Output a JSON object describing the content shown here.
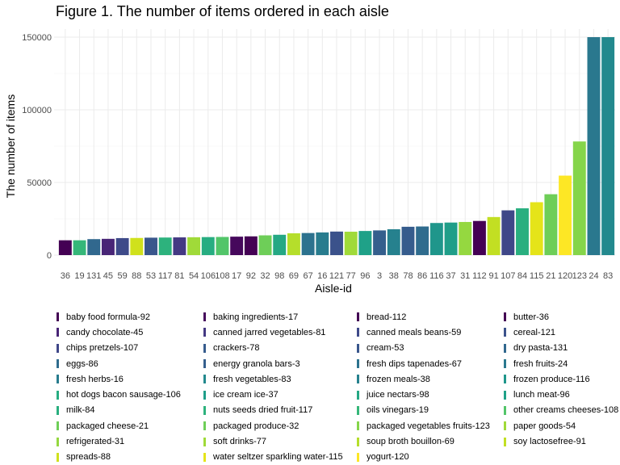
{
  "chart_data": {
    "type": "bar",
    "title": "Figure 1. The number of items ordered in each aisle",
    "xlabel": "Aisle-id",
    "ylabel": "The number of items",
    "ylim": [
      0,
      150000
    ],
    "yticks": [
      0,
      50000,
      100000,
      150000
    ],
    "grid": true,
    "legend_position": "bottom",
    "bars": [
      {
        "aisle": "36",
        "value": 10200,
        "color": "#440154"
      },
      {
        "aisle": "19",
        "value": 10200,
        "color": "#35b779"
      },
      {
        "aisle": "131",
        "value": 11000,
        "color": "#31688e"
      },
      {
        "aisle": "45",
        "value": 11200,
        "color": "#482576"
      },
      {
        "aisle": "59",
        "value": 11700,
        "color": "#3e4a89"
      },
      {
        "aisle": "88",
        "value": 11800,
        "color": "#d0e11c"
      },
      {
        "aisle": "53",
        "value": 12000,
        "color": "#39568c"
      },
      {
        "aisle": "117",
        "value": 12100,
        "color": "#2db27d"
      },
      {
        "aisle": "81",
        "value": 12200,
        "color": "#443983"
      },
      {
        "aisle": "54",
        "value": 12300,
        "color": "#a0da39"
      },
      {
        "aisle": "106",
        "value": 12400,
        "color": "#27ad81"
      },
      {
        "aisle": "108",
        "value": 12500,
        "color": "#52c569"
      },
      {
        "aisle": "17",
        "value": 12700,
        "color": "#46085c"
      },
      {
        "aisle": "92",
        "value": 12900,
        "color": "#440154"
      },
      {
        "aisle": "32",
        "value": 13600,
        "color": "#6ece58"
      },
      {
        "aisle": "98",
        "value": 14000,
        "color": "#25a884"
      },
      {
        "aisle": "69",
        "value": 15000,
        "color": "#b5de2b"
      },
      {
        "aisle": "67",
        "value": 15200,
        "color": "#2c728e"
      },
      {
        "aisle": "16",
        "value": 15600,
        "color": "#287c8e"
      },
      {
        "aisle": "121",
        "value": 16200,
        "color": "#3b528b"
      },
      {
        "aisle": "77",
        "value": 16100,
        "color": "#a0da39"
      },
      {
        "aisle": "96",
        "value": 16600,
        "color": "#1fa188"
      },
      {
        "aisle": "3",
        "value": 17000,
        "color": "#355f8d"
      },
      {
        "aisle": "38",
        "value": 17800,
        "color": "#26818e"
      },
      {
        "aisle": "78",
        "value": 19500,
        "color": "#365c8d"
      },
      {
        "aisle": "86",
        "value": 19700,
        "color": "#2f6c8e"
      },
      {
        "aisle": "116",
        "value": 22100,
        "color": "#1f968b"
      },
      {
        "aisle": "37",
        "value": 22400,
        "color": "#1f9e89"
      },
      {
        "aisle": "31",
        "value": 22800,
        "color": "#95d840"
      },
      {
        "aisle": "112",
        "value": 23500,
        "color": "#440154"
      },
      {
        "aisle": "91",
        "value": 26200,
        "color": "#c2df23"
      },
      {
        "aisle": "107",
        "value": 30800,
        "color": "#3f4788"
      },
      {
        "aisle": "84",
        "value": 32200,
        "color": "#29af7f"
      },
      {
        "aisle": "115",
        "value": 36400,
        "color": "#e5e419"
      },
      {
        "aisle": "21",
        "value": 41900,
        "color": "#6ece58"
      },
      {
        "aisle": "120",
        "value": 54700,
        "color": "#fde725"
      },
      {
        "aisle": "123",
        "value": 78200,
        "color": "#85d54a"
      },
      {
        "aisle": "24",
        "value": 150000,
        "color": "#2a788e"
      },
      {
        "aisle": "83",
        "value": 150000,
        "color": "#23898e"
      }
    ],
    "legend": [
      {
        "label": "baby food formula-92",
        "color": "#440154"
      },
      {
        "label": "candy chocolate-45",
        "color": "#482576"
      },
      {
        "label": "chips pretzels-107",
        "color": "#3f4788"
      },
      {
        "label": "eggs-86",
        "color": "#2f6c8e"
      },
      {
        "label": "fresh herbs-16",
        "color": "#287c8e"
      },
      {
        "label": "hot dogs bacon sausage-106",
        "color": "#27ad81"
      },
      {
        "label": "milk-84",
        "color": "#29af7f"
      },
      {
        "label": "packaged cheese-21",
        "color": "#6ece58"
      },
      {
        "label": "refrigerated-31",
        "color": "#95d840"
      },
      {
        "label": "spreads-88",
        "color": "#d0e11c"
      },
      {
        "label": "baking ingredients-17",
        "color": "#46085c"
      },
      {
        "label": "canned jarred vegetables-81",
        "color": "#443983"
      },
      {
        "label": "crackers-78",
        "color": "#365c8d"
      },
      {
        "label": "energy granola bars-3",
        "color": "#355f8d"
      },
      {
        "label": "fresh vegetables-83",
        "color": "#23898e"
      },
      {
        "label": "ice cream ice-37",
        "color": "#1f9e89"
      },
      {
        "label": "nuts seeds dried fruit-117",
        "color": "#2db27d"
      },
      {
        "label": "packaged produce-32",
        "color": "#6ece58"
      },
      {
        "label": "soft drinks-77",
        "color": "#a0da39"
      },
      {
        "label": "water seltzer sparkling water-115",
        "color": "#e5e419"
      },
      {
        "label": "bread-112",
        "color": "#440154"
      },
      {
        "label": "canned meals beans-59",
        "color": "#3e4a89"
      },
      {
        "label": "cream-53",
        "color": "#39568c"
      },
      {
        "label": "fresh dips tapenades-67",
        "color": "#2c728e"
      },
      {
        "label": "frozen meals-38",
        "color": "#26818e"
      },
      {
        "label": "juice nectars-98",
        "color": "#25a884"
      },
      {
        "label": "oils vinegars-19",
        "color": "#35b779"
      },
      {
        "label": "packaged vegetables fruits-123",
        "color": "#85d54a"
      },
      {
        "label": "soup broth bouillon-69",
        "color": "#b5de2b"
      },
      {
        "label": "yogurt-120",
        "color": "#fde725"
      },
      {
        "label": "butter-36",
        "color": "#440154"
      },
      {
        "label": "cereal-121",
        "color": "#3b528b"
      },
      {
        "label": "dry pasta-131",
        "color": "#31688e"
      },
      {
        "label": "fresh fruits-24",
        "color": "#2a788e"
      },
      {
        "label": "frozen produce-116",
        "color": "#1f968b"
      },
      {
        "label": "lunch meat-96",
        "color": "#1fa188"
      },
      {
        "label": "other creams cheeses-108",
        "color": "#52c569"
      },
      {
        "label": "paper goods-54",
        "color": "#a0da39"
      },
      {
        "label": "soy lactosefree-91",
        "color": "#c2df23"
      }
    ]
  }
}
